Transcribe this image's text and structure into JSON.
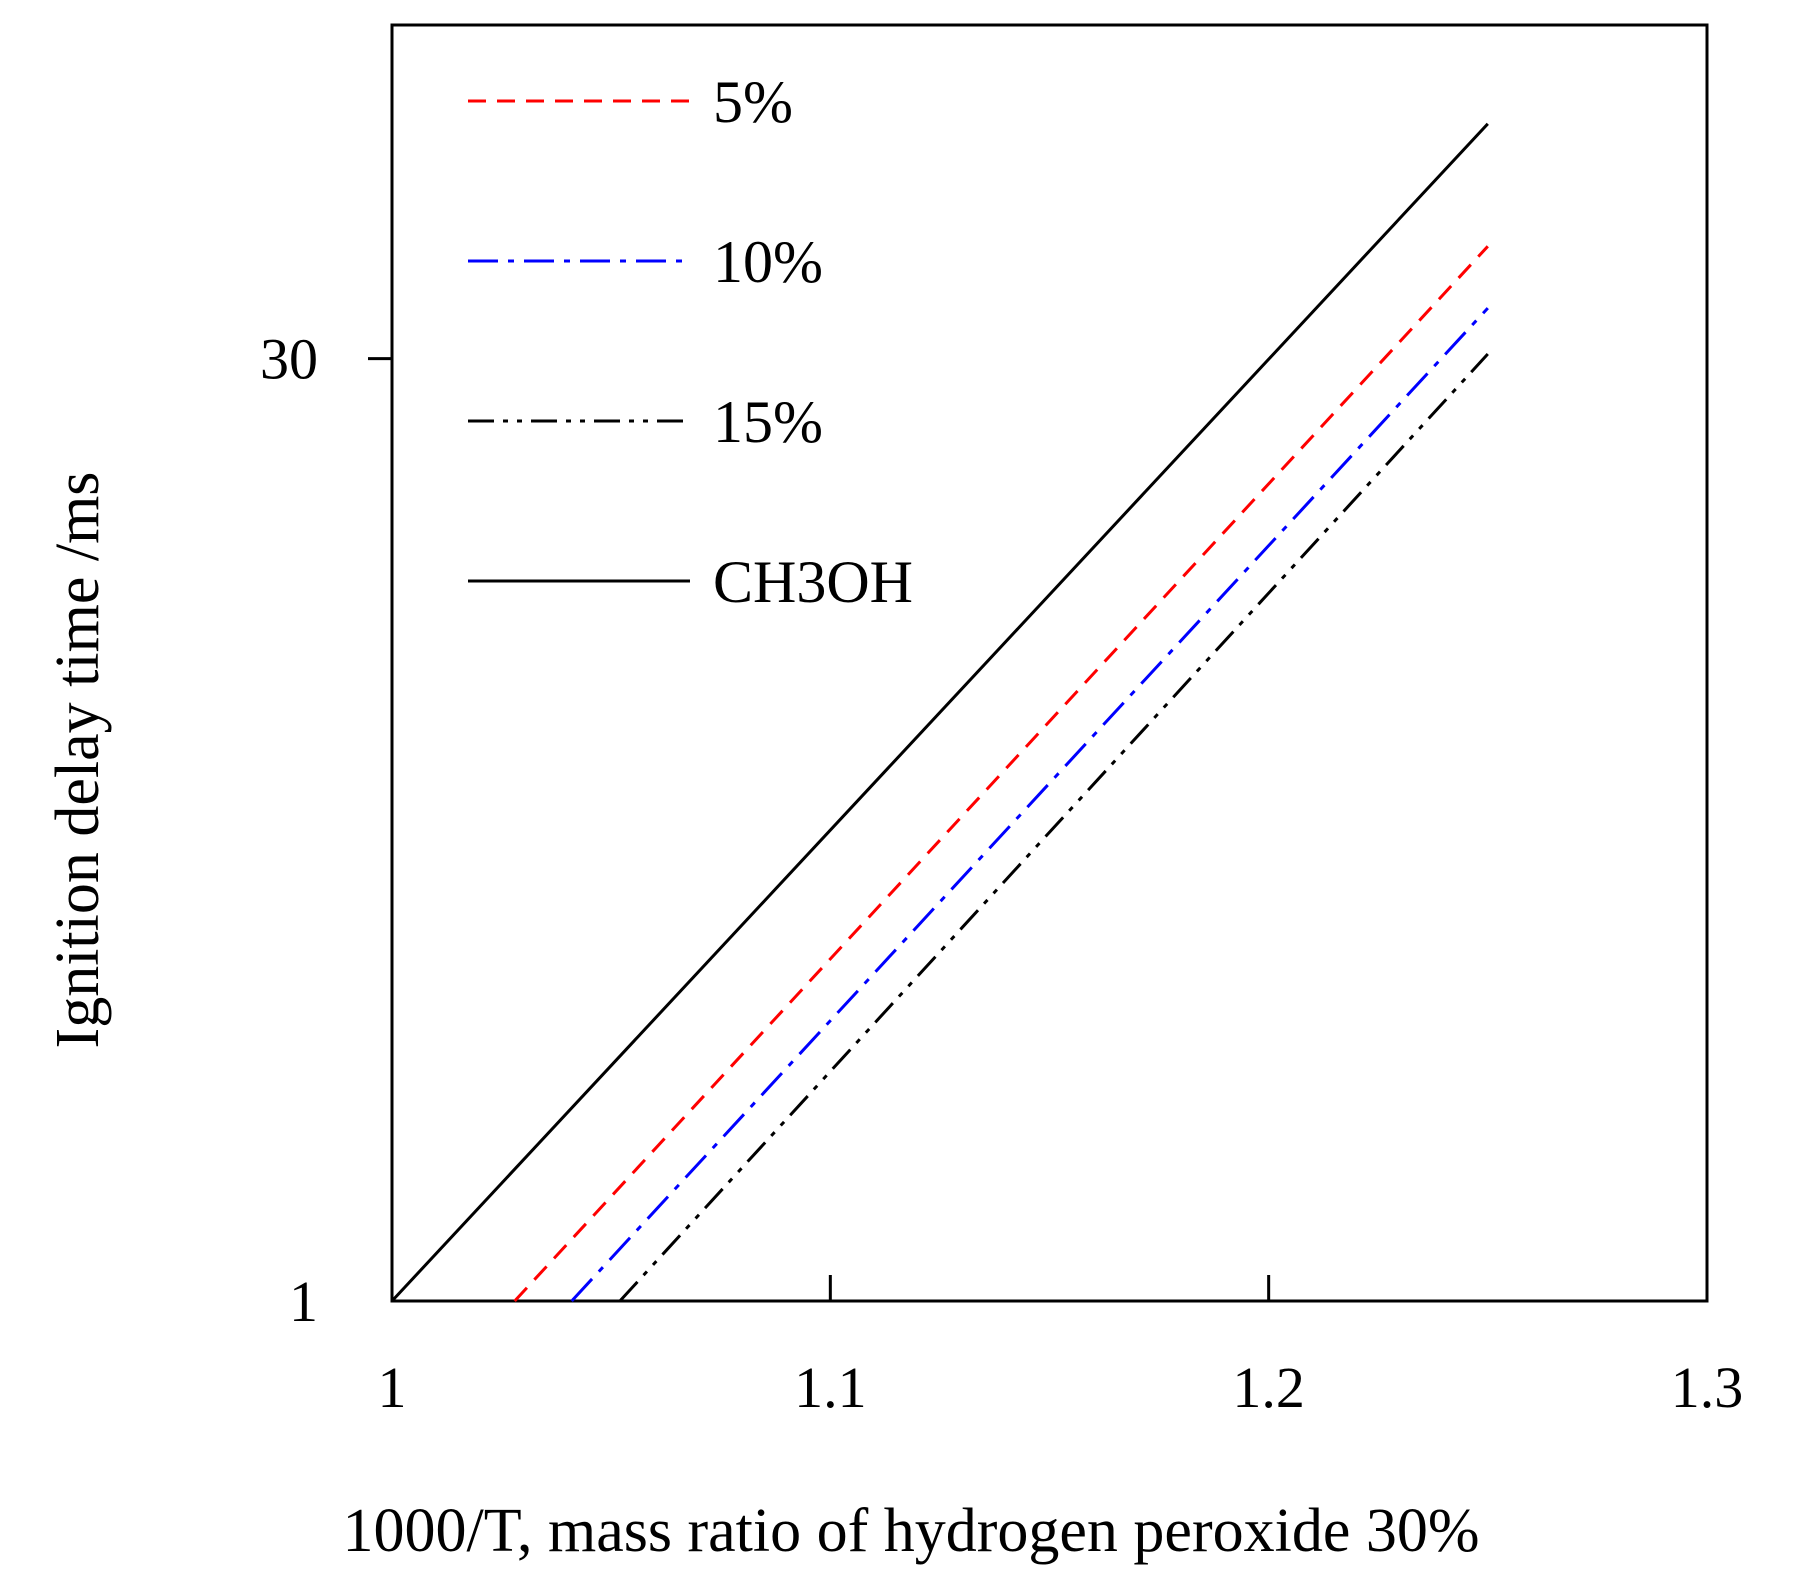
{
  "chart_data": {
    "type": "line",
    "title": "",
    "xlabel": "1000/T, mass ratio of hydrogen peroxide 30%",
    "ylabel": "Ignition delay time /ms",
    "yscale": "log",
    "xlim": [
      1.0,
      1.3
    ],
    "ylim": [
      1,
      100
    ],
    "xticks": [
      1,
      1.1,
      1.2,
      1.3
    ],
    "xtick_labels": [
      "1",
      "1.1",
      "1.2",
      "1.3"
    ],
    "yticks": [
      1,
      30
    ],
    "ytick_labels": [
      "1",
      "30"
    ],
    "grid": false,
    "legend_position": "top-left",
    "series": [
      {
        "name": "5%",
        "color": "#ff0000",
        "dash": "dashed",
        "x": [
          1.028,
          1.25
        ],
        "y": [
          1,
          45
        ]
      },
      {
        "name": "10%",
        "color": "#0000ff",
        "dash": "dashdot",
        "x": [
          1.041,
          1.25
        ],
        "y": [
          1,
          36
        ]
      },
      {
        "name": "15%",
        "color": "#000000",
        "dash": "dashdotdot",
        "x": [
          1.052,
          1.25
        ],
        "y": [
          1,
          30.5
        ]
      },
      {
        "name": "CH3OH",
        "color": "#000000",
        "dash": "solid",
        "x": [
          1.0,
          1.25
        ],
        "y": [
          1,
          70
        ]
      }
    ]
  }
}
